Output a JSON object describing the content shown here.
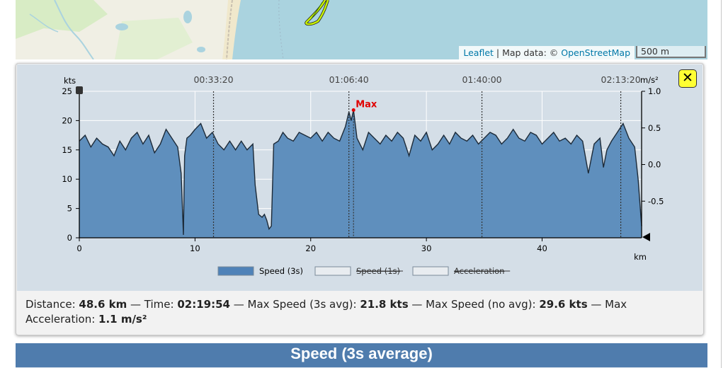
{
  "map": {
    "attribution_leaflet": "Leaflet",
    "attribution_sep": " | Map data: © ",
    "attribution_osm": "OpenStreetMap",
    "scale": "500 m"
  },
  "close_label": "✕",
  "summary": {
    "distance_label": "Distance: ",
    "distance": "48.6 km",
    "time_label": " — Time: ",
    "time": "02:19:54",
    "max3_label": " — Max Speed (3s avg): ",
    "max3": "21.8 kts",
    "maxno_label": " — Max Speed (no avg): ",
    "maxno": "29.6 kts",
    "maxacc_label": " — Max Acceleration: ",
    "maxacc": "1.1 m/s²"
  },
  "section_title": "Speed (3s average)",
  "chart_data": {
    "type": "area",
    "left_unit": "kts",
    "right_unit": "m/s²",
    "x_unit": "km",
    "xlim": [
      0,
      48.6
    ],
    "ylim": [
      0,
      25
    ],
    "y2lim": [
      -1.0,
      1.0
    ],
    "x_ticks": [
      0,
      10,
      20,
      30,
      40
    ],
    "y_ticks": [
      0,
      5,
      10,
      15,
      20,
      25
    ],
    "y2_ticks": [
      "-0.5",
      "0.0",
      "0.5",
      "1.0"
    ],
    "y2_tick_values": [
      -0.5,
      0.0,
      0.5,
      1.0
    ],
    "time_ticks": [
      {
        "label": "00:33:20",
        "km": 11.6
      },
      {
        "label": "01:06:40",
        "km": 23.3
      },
      {
        "label": "01:40:00",
        "km": 34.8
      },
      {
        "label": "02:13:20",
        "km": 46.8
      }
    ],
    "max_label": "Max",
    "max_point": {
      "x": 23.7,
      "y": 21.8
    },
    "grid": true,
    "legend_position": "bottom",
    "legend": [
      {
        "label": "Speed (3s)",
        "color": "#4f82b8",
        "visible": true
      },
      {
        "label": "Speed (1s)",
        "color": "#e8ecf0",
        "visible": false
      },
      {
        "label": "Acceleration",
        "color": "#e8ecf0",
        "visible": false
      }
    ],
    "series": [
      {
        "name": "Speed (3s)",
        "x": [
          0,
          0.5,
          1,
          1.5,
          2,
          2.5,
          3,
          3.5,
          4,
          4.5,
          5,
          5.5,
          6,
          6.5,
          7,
          7.5,
          8,
          8.5,
          8.8,
          9.0,
          9.1,
          9.3,
          9.6,
          10,
          10.5,
          11,
          11.5,
          12,
          12.5,
          13,
          13.5,
          14,
          14.5,
          15,
          15.2,
          15.5,
          15.8,
          16.0,
          16.2,
          16.4,
          16.6,
          16.8,
          17.2,
          17.6,
          18,
          18.5,
          19,
          19.5,
          20,
          20.5,
          21,
          21.5,
          22,
          22.5,
          23,
          23.3,
          23.5,
          23.7,
          24,
          24.5,
          25,
          25.5,
          26,
          26.5,
          27,
          27.5,
          28,
          28.5,
          29,
          29.5,
          30,
          30.5,
          31,
          31.5,
          32,
          32.5,
          33,
          33.5,
          34,
          34.5,
          35,
          35.5,
          36,
          36.5,
          37,
          37.5,
          38,
          38.5,
          39,
          39.5,
          40,
          40.5,
          41,
          41.5,
          42,
          42.5,
          43,
          43.5,
          44,
          44.5,
          45,
          45.3,
          45.6,
          46,
          46.5,
          47,
          47.5,
          48,
          48.3,
          48.6
        ],
        "y": [
          16.5,
          17.5,
          15.5,
          17,
          16,
          15.5,
          14,
          16.5,
          15,
          17,
          18,
          16,
          17.5,
          14.5,
          16,
          18.5,
          17,
          15.5,
          11,
          0.5,
          14,
          17,
          17.5,
          18.5,
          19.5,
          17,
          18,
          16,
          15,
          16.5,
          15,
          16.5,
          15,
          16,
          9,
          4,
          3.5,
          4,
          3,
          1.5,
          2,
          16,
          16.5,
          18,
          17,
          16.5,
          18,
          17.5,
          17,
          18,
          16.5,
          18,
          17,
          16.5,
          19,
          21.5,
          20,
          21.8,
          17,
          15,
          18,
          17,
          16,
          17.5,
          16.5,
          18,
          17,
          14,
          17.5,
          16.5,
          18,
          15,
          16,
          17.5,
          16,
          18,
          17,
          16.5,
          17.5,
          16,
          17,
          18,
          17.5,
          16,
          17,
          18.5,
          17,
          16.5,
          18,
          17.5,
          16,
          17,
          18,
          16.5,
          17,
          16,
          17.5,
          16.5,
          11,
          16,
          17,
          12,
          15,
          16.5,
          18,
          19.5,
          17,
          15.5,
          10,
          2
        ]
      }
    ]
  }
}
